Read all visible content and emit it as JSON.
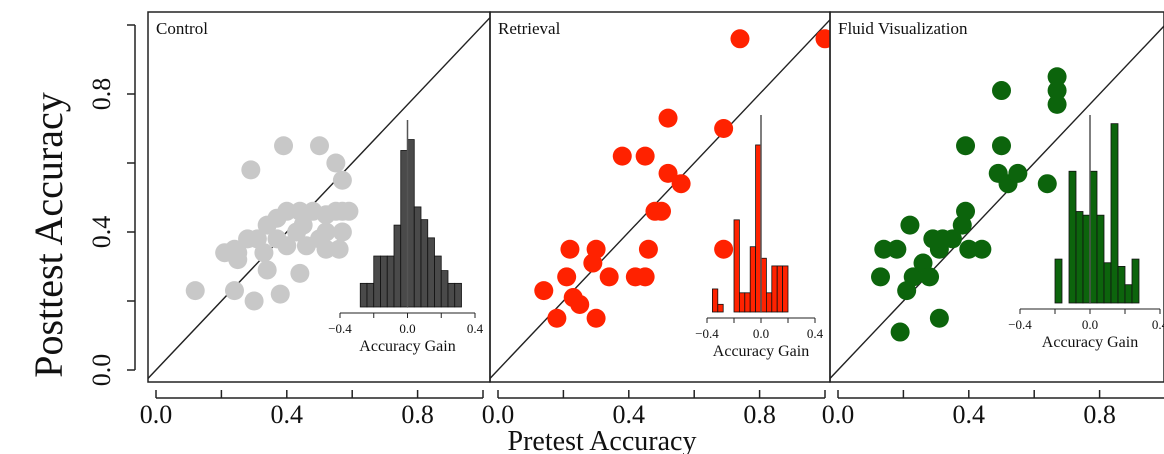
{
  "figure": {
    "ylabel": "Posttest Accuracy",
    "xlabel": "Pretest Accuracy"
  },
  "chart_data": [
    {
      "type": "scatter",
      "title": "Control",
      "color": "#c8c8c8",
      "xlim": [
        0,
        1
      ],
      "ylim": [
        0,
        1
      ],
      "xticks": [
        "0.0",
        "0.4",
        "0.8"
      ],
      "yticks": [
        "0.0",
        "0.4",
        "0.8"
      ],
      "reference_line": "y = x",
      "points": [
        [
          0.12,
          0.23
        ],
        [
          0.24,
          0.23
        ],
        [
          0.3,
          0.2
        ],
        [
          0.21,
          0.34
        ],
        [
          0.25,
          0.32
        ],
        [
          0.28,
          0.38
        ],
        [
          0.24,
          0.35
        ],
        [
          0.31,
          0.38
        ],
        [
          0.33,
          0.34
        ],
        [
          0.37,
          0.38
        ],
        [
          0.4,
          0.36
        ],
        [
          0.43,
          0.4
        ],
        [
          0.46,
          0.36
        ],
        [
          0.5,
          0.38
        ],
        [
          0.52,
          0.35
        ],
        [
          0.34,
          0.42
        ],
        [
          0.37,
          0.44
        ],
        [
          0.4,
          0.46
        ],
        [
          0.44,
          0.46
        ],
        [
          0.48,
          0.46
        ],
        [
          0.52,
          0.45
        ],
        [
          0.55,
          0.46
        ],
        [
          0.57,
          0.46
        ],
        [
          0.59,
          0.46
        ],
        [
          0.34,
          0.29
        ],
        [
          0.38,
          0.22
        ],
        [
          0.44,
          0.28
        ],
        [
          0.56,
          0.35
        ],
        [
          0.52,
          0.4
        ],
        [
          0.57,
          0.4
        ],
        [
          0.45,
          0.42
        ],
        [
          0.29,
          0.58
        ],
        [
          0.39,
          0.65
        ],
        [
          0.5,
          0.65
        ],
        [
          0.55,
          0.6
        ],
        [
          0.57,
          0.55
        ],
        [
          0.25,
          0.34
        ]
      ],
      "inset": {
        "type": "histogram",
        "xlabel": "Accuracy Gain",
        "xticks": [
          "-0.4",
          "0.0",
          "0.4"
        ],
        "xlim": [
          -0.4,
          0.4
        ],
        "color": "#4a4a4a",
        "bin_width": 0.04,
        "bin_start": -0.28,
        "heights": [
          0.13,
          0.13,
          0.28,
          0.28,
          0.28,
          0.45,
          0.86,
          0.92,
          0.55,
          0.48,
          0.38,
          0.28,
          0.2,
          0.13,
          0.13
        ]
      }
    },
    {
      "type": "scatter",
      "title": "Retrieval",
      "color": "#ff2200",
      "xlim": [
        0,
        1
      ],
      "ylim": [
        0,
        1
      ],
      "xticks": [
        "0.0",
        "0.4",
        "0.8"
      ],
      "yticks": [],
      "reference_line": "y = x",
      "points": [
        [
          0.14,
          0.23
        ],
        [
          0.18,
          0.15
        ],
        [
          0.21,
          0.27
        ],
        [
          0.22,
          0.35
        ],
        [
          0.23,
          0.21
        ],
        [
          0.25,
          0.19
        ],
        [
          0.29,
          0.31
        ],
        [
          0.3,
          0.35
        ],
        [
          0.3,
          0.15
        ],
        [
          0.34,
          0.27
        ],
        [
          0.38,
          0.62
        ],
        [
          0.42,
          0.27
        ],
        [
          0.45,
          0.27
        ],
        [
          0.46,
          0.35
        ],
        [
          0.45,
          0.62
        ],
        [
          0.48,
          0.46
        ],
        [
          0.5,
          0.46
        ],
        [
          0.52,
          0.57
        ],
        [
          0.56,
          0.54
        ],
        [
          0.52,
          0.73
        ],
        [
          0.69,
          0.7
        ],
        [
          0.69,
          0.35
        ],
        [
          0.74,
          0.96
        ],
        [
          1.0,
          0.96
        ]
      ],
      "inset": {
        "type": "histogram",
        "xlabel": "Accuracy Gain",
        "xticks": [
          "-0.4",
          "0.0",
          "0.4"
        ],
        "xlim": [
          -0.4,
          0.4
        ],
        "color": "#ff2200",
        "bin_width": 0.04,
        "bin_start": -0.36,
        "heights": [
          0.12,
          0.04,
          0.0,
          0.0,
          0.48,
          0.1,
          0.1,
          0.34,
          0.87,
          0.28,
          0.1,
          0.24,
          0.24,
          0.24
        ]
      }
    },
    {
      "type": "scatter",
      "title": "Fluid Visualization",
      "color": "#0c640c",
      "xlim": [
        0,
        1
      ],
      "ylim": [
        0,
        1
      ],
      "xticks": [
        "0.0",
        "0.4",
        "0.8"
      ],
      "yticks": [],
      "reference_line": "y = x",
      "points": [
        [
          0.13,
          0.27
        ],
        [
          0.14,
          0.35
        ],
        [
          0.18,
          0.35
        ],
        [
          0.19,
          0.11
        ],
        [
          0.21,
          0.23
        ],
        [
          0.23,
          0.27
        ],
        [
          0.22,
          0.42
        ],
        [
          0.26,
          0.31
        ],
        [
          0.28,
          0.27
        ],
        [
          0.29,
          0.38
        ],
        [
          0.31,
          0.35
        ],
        [
          0.32,
          0.38
        ],
        [
          0.31,
          0.15
        ],
        [
          0.35,
          0.38
        ],
        [
          0.38,
          0.42
        ],
        [
          0.4,
          0.35
        ],
        [
          0.44,
          0.35
        ],
        [
          0.39,
          0.46
        ],
        [
          0.39,
          0.65
        ],
        [
          0.49,
          0.57
        ],
        [
          0.52,
          0.54
        ],
        [
          0.55,
          0.57
        ],
        [
          0.5,
          0.65
        ],
        [
          0.64,
          0.54
        ],
        [
          0.5,
          0.81
        ],
        [
          0.67,
          0.77
        ],
        [
          0.67,
          0.81
        ],
        [
          0.67,
          0.85
        ]
      ],
      "inset": {
        "type": "histogram",
        "xlabel": "Accuracy Gain",
        "xticks": [
          "-0.4",
          "0.0",
          "0.4"
        ],
        "xlim": [
          -0.4,
          0.4
        ],
        "color": "#0c640c",
        "bin_width": 0.04,
        "bin_start": -0.2,
        "heights": [
          0.24,
          0.0,
          0.72,
          0.5,
          0.48,
          0.72,
          0.48,
          0.22,
          0.98,
          0.2,
          0.1,
          0.24
        ]
      }
    }
  ]
}
